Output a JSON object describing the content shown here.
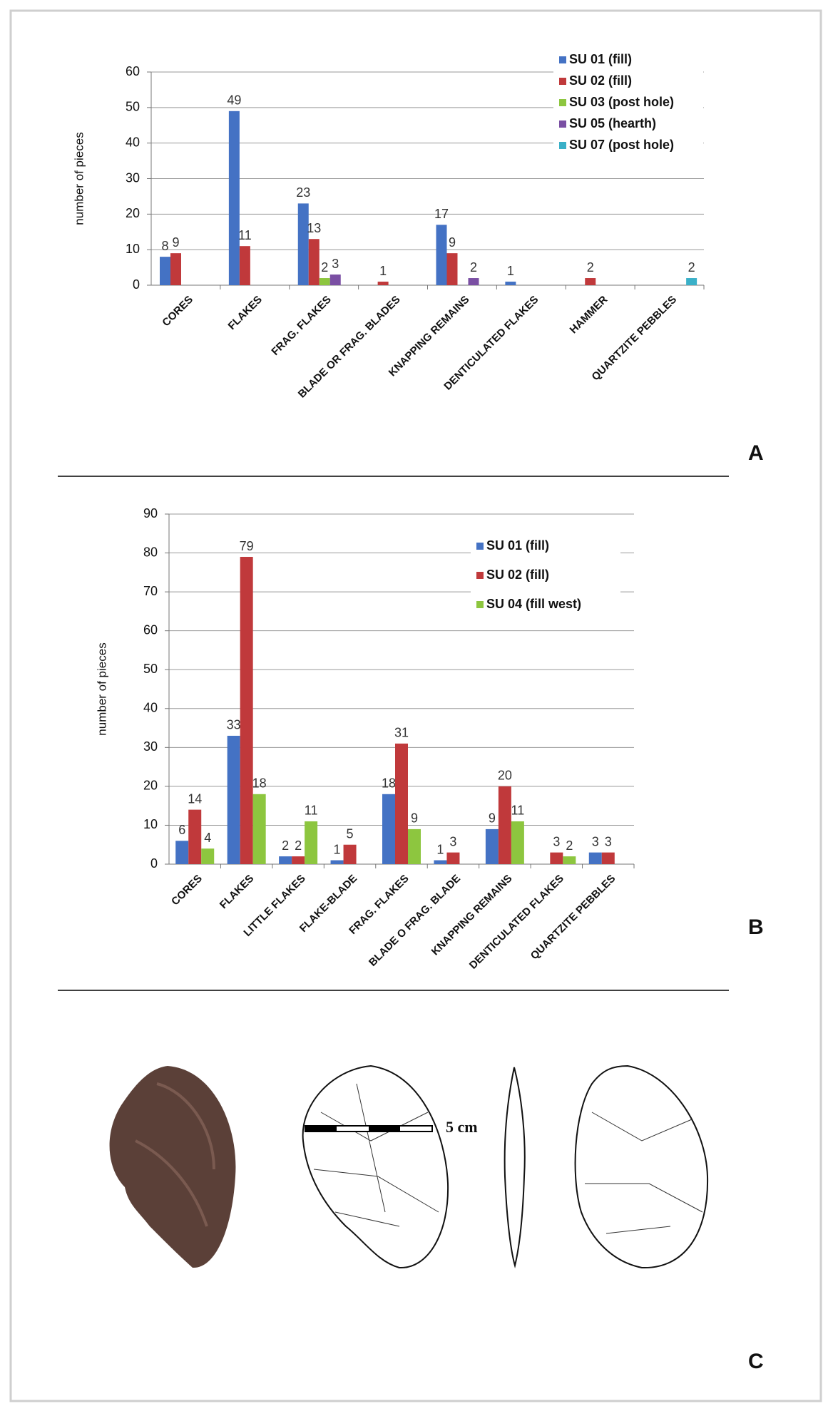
{
  "chart_data": [
    {
      "type": "bar",
      "panel": "A",
      "y_label": "number of pieces",
      "categories": [
        "CORES",
        "FLAKES",
        "FRAG. FLAKES",
        "BLADE OR FRAG. BLADES",
        "KNAPPING  REMAINS",
        "DENTICULATED FLAKES",
        "HAMMER",
        "QUARTZITE PEBBLES"
      ],
      "series": [
        {
          "name": "SU 01 (fill)",
          "color": "#4472c4",
          "values": [
            8,
            49,
            23,
            null,
            17,
            1,
            null,
            null
          ]
        },
        {
          "name": "SU 02 (fill)",
          "color": "#c0393b",
          "values": [
            9,
            11,
            13,
            1,
            9,
            null,
            2,
            null
          ]
        },
        {
          "name": "SU 03 (post hole)",
          "color": "#8dc63f",
          "values": [
            null,
            null,
            2,
            null,
            null,
            null,
            null,
            null
          ]
        },
        {
          "name": "SU 05 (hearth)",
          "color": "#7a4fa3",
          "values": [
            null,
            null,
            3,
            null,
            2,
            null,
            null,
            null
          ]
        },
        {
          "name": "SU 07 (post hole)",
          "color": "#3ab0c8",
          "values": [
            null,
            null,
            null,
            null,
            null,
            null,
            null,
            2
          ]
        }
      ],
      "ylim": [
        0,
        60
      ],
      "yticks": [
        0,
        10,
        20,
        30,
        40,
        50,
        60
      ],
      "grid": true,
      "legend": "upper right"
    },
    {
      "type": "bar",
      "panel": "B",
      "y_label": "number of pieces",
      "categories": [
        "CORES",
        "FLAKES",
        "LITTLE FLAKES",
        "FLAKE-BLADE",
        "FRAG. FLAKES",
        "BLADE O FRAG. BLADE",
        "KNAPPING  REMAINS",
        "DENTICULATED FLAKES",
        "QUARTZITE PEBBLES"
      ],
      "series": [
        {
          "name": "SU 01 (fill)",
          "color": "#4472c4",
          "values": [
            6,
            33,
            2,
            1,
            18,
            1,
            9,
            null,
            3
          ]
        },
        {
          "name": "SU 02 (fill)",
          "color": "#c0393b",
          "values": [
            14,
            79,
            2,
            5,
            31,
            3,
            20,
            3,
            3
          ]
        },
        {
          "name": "SU 04 (fill west)",
          "color": "#8dc63f",
          "values": [
            4,
            18,
            11,
            null,
            9,
            null,
            11,
            2,
            null
          ]
        }
      ],
      "ylim": [
        0,
        90
      ],
      "yticks": [
        0,
        10,
        20,
        30,
        40,
        50,
        60,
        70,
        80,
        90
      ],
      "grid": true,
      "legend": "right"
    }
  ],
  "photo_panel": {
    "panel": "C",
    "scale_label": "5 cm"
  }
}
